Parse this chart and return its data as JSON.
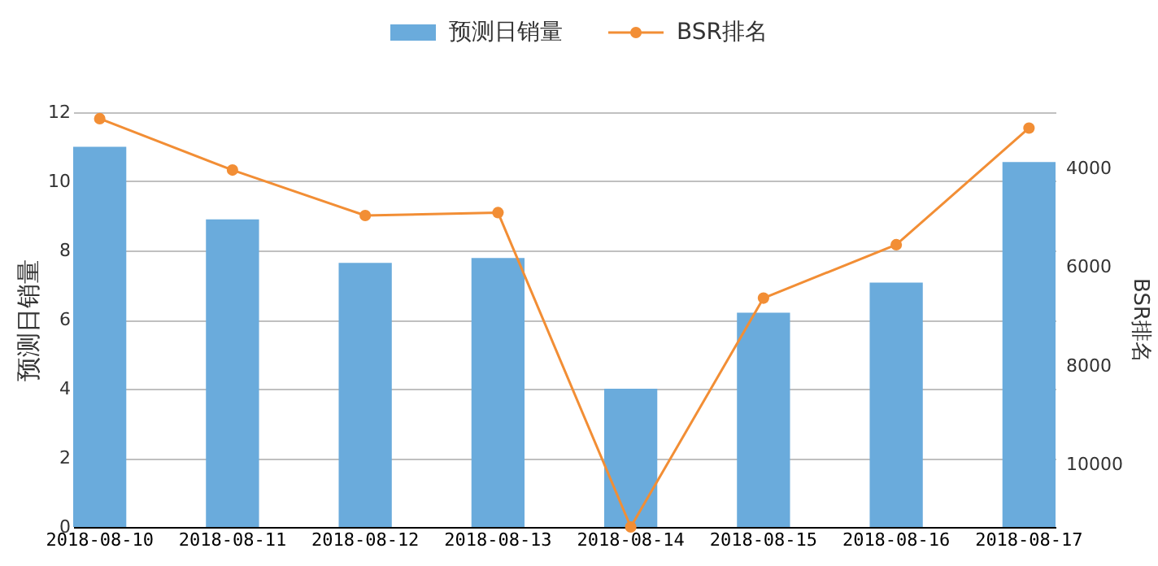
{
  "chart_data": {
    "type": "bar",
    "categories": [
      "2018-08-10",
      "2018-08-11",
      "2018-08-12",
      "2018-08-13",
      "2018-08-14",
      "2018-08-15",
      "2018-08-16",
      "2018-08-17"
    ],
    "series": [
      {
        "name": "预测日销量",
        "color": "#6aabdc",
        "values": [
          11.0,
          8.9,
          7.64,
          7.78,
          4.0,
          6.2,
          7.07,
          10.56
        ]
      },
      {
        "name": "BSR排名",
        "type": "line",
        "axis": "y2",
        "color": "#f28e35",
        "values": [
          3000,
          4040,
          4960,
          4900,
          11260,
          6630,
          5550,
          3190
        ]
      }
    ],
    "ylabel": "预测日销量",
    "y2label": "BSR排名",
    "ylim": [
      0,
      12
    ],
    "yticks": [
      0,
      2,
      4,
      6,
      8,
      10,
      12
    ],
    "y2lim": [
      11260,
      2870
    ],
    "y2ticks": [
      4000,
      6000,
      8000,
      10000
    ],
    "grid": "y",
    "legend": "top",
    "marker": "circle",
    "line_style": "solid"
  }
}
